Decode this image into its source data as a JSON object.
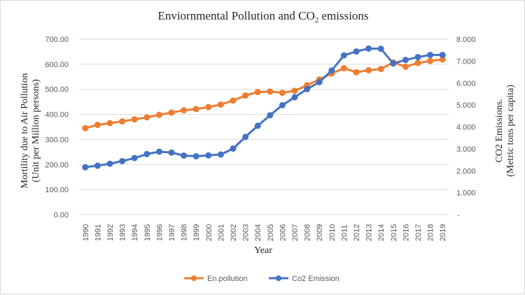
{
  "chart_data": {
    "type": "line",
    "title": "Enviornmental Pollution and CO",
    "title_subscript": "2",
    "title_suffix": " emissions",
    "xlabel": "Year",
    "ylabel_left_line1": "Mortility due to Air Pollution",
    "ylabel_left_line2": "(Unit per Million persons)",
    "ylabel_right_line1": "CO2 Emissions.",
    "ylabel_right_line2": "(Metric tons per capita)",
    "ylim_left": [
      0,
      700
    ],
    "ylim_right": [
      0,
      8
    ],
    "left_ticks": [
      "0.00",
      "100.00",
      "200.00",
      "300.00",
      "400.00",
      "500.00",
      "600.00",
      "700.00"
    ],
    "right_ticks": [
      "-",
      "1.000",
      "2.000",
      "3.000",
      "4.000",
      "5.000",
      "6.000",
      "7.000",
      "8.000"
    ],
    "grid": true,
    "legend_position": "bottom",
    "categories": [
      "1990",
      "1991",
      "1992",
      "1993",
      "1994",
      "1995",
      "1996",
      "1997",
      "1998",
      "1999",
      "2000",
      "2001",
      "2002",
      "2003",
      "2004",
      "2005",
      "2006",
      "2007",
      "2008",
      "2009",
      "2010",
      "2011",
      "2012",
      "2013",
      "2014",
      "2015",
      "2016",
      "2017",
      "2018",
      "2019"
    ],
    "series": [
      {
        "name": "En.pollution",
        "axis": "left",
        "color": "#ED7D31",
        "values": [
          345,
          358,
          365,
          372,
          380,
          388,
          398,
          407,
          416,
          421,
          429,
          439,
          455,
          475,
          489,
          491,
          486,
          494,
          516,
          539,
          563,
          584,
          568,
          576,
          581,
          607,
          590,
          605,
          613,
          619
        ]
      },
      {
        "name": "Co2 Emission",
        "axis": "right",
        "color": "#4472C4",
        "values": [
          2.16,
          2.23,
          2.32,
          2.44,
          2.58,
          2.76,
          2.87,
          2.83,
          2.69,
          2.66,
          2.7,
          2.74,
          3.01,
          3.54,
          4.05,
          4.53,
          4.99,
          5.35,
          5.72,
          6.04,
          6.57,
          7.26,
          7.44,
          7.57,
          7.56,
          6.89,
          7.05,
          7.18,
          7.28,
          7.28
        ]
      }
    ]
  }
}
